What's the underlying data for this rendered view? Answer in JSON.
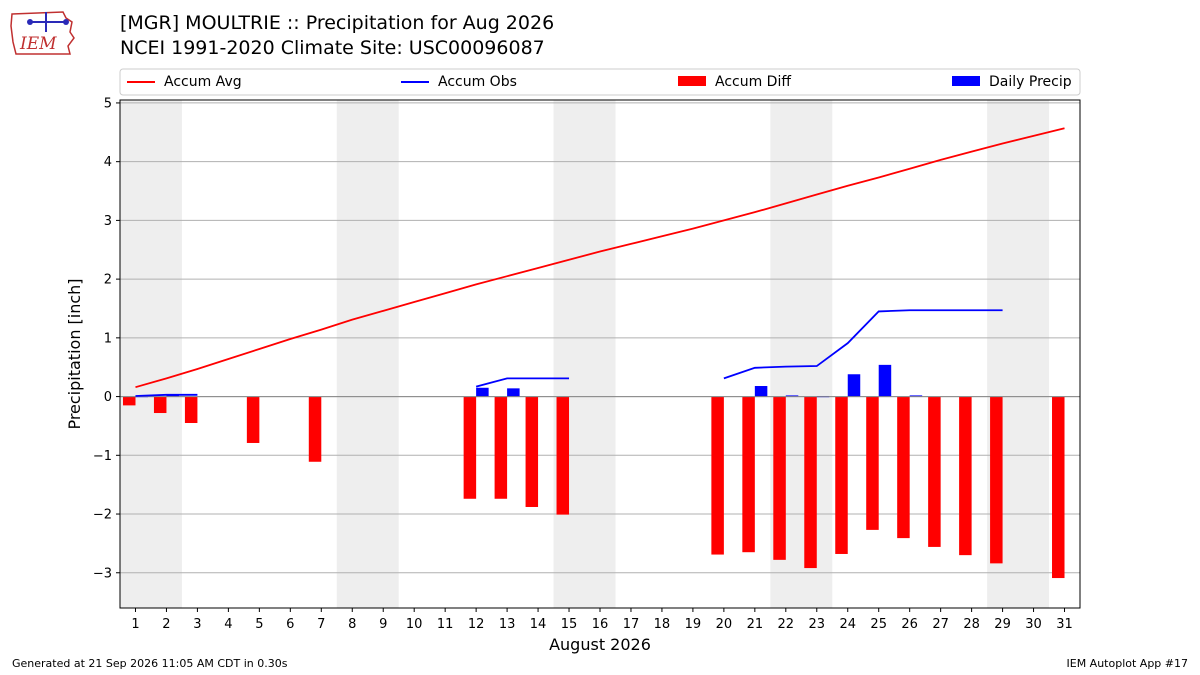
{
  "header": {
    "logo_text": "IEM",
    "title_line1": "[MGR] MOULTRIE :: Precipitation for Aug 2026",
    "title_line2": "NCEI 1991-2020 Climate Site: USC00096087"
  },
  "footer": {
    "generated": "Generated at 21 Sep 2026 11:05 AM CDT in 0.30s",
    "app": "IEM Autoplot App #17"
  },
  "colors": {
    "avg": "#ff0000",
    "obs": "#0000ff",
    "diff": "#ff0000",
    "daily": "#0000ff",
    "weekend_shade": "#eeeeee",
    "grid": "#b0b0b0"
  },
  "chart_data": {
    "type": "bar",
    "xlabel": "August 2026",
    "ylabel": "Precipitation [inch]",
    "xlim": [
      0.5,
      31.5
    ],
    "ylim": [
      -3.6,
      5.05
    ],
    "yticks": [
      -3,
      -2,
      -1,
      0,
      1,
      2,
      3,
      4,
      5
    ],
    "grid": true,
    "legend": {
      "placement": "top",
      "entries": [
        "Accum Avg",
        "Accum Obs",
        "Accum Diff",
        "Daily Precip"
      ]
    },
    "days": [
      1,
      2,
      3,
      4,
      5,
      6,
      7,
      8,
      9,
      10,
      11,
      12,
      13,
      14,
      15,
      16,
      17,
      18,
      19,
      20,
      21,
      22,
      23,
      24,
      25,
      26,
      27,
      28,
      29,
      30,
      31
    ],
    "shaded_ranges": [
      [
        0.5,
        2.5
      ],
      [
        7.5,
        9.5
      ],
      [
        14.5,
        16.5
      ],
      [
        21.5,
        23.5
      ],
      [
        28.5,
        30.5
      ]
    ],
    "accum_avg": {
      "name": "Accum Avg",
      "days": [
        1,
        2,
        3,
        4,
        5,
        6,
        7,
        8,
        9,
        10,
        11,
        12,
        13,
        14,
        15,
        16,
        17,
        18,
        19,
        20,
        21,
        22,
        23,
        24,
        25,
        26,
        27,
        28,
        29,
        30,
        31
      ],
      "values": [
        0.16,
        0.31,
        0.47,
        0.64,
        0.81,
        0.98,
        1.14,
        1.31,
        1.46,
        1.61,
        1.76,
        1.91,
        2.05,
        2.19,
        2.33,
        2.47,
        2.6,
        2.73,
        2.86,
        3.0,
        3.14,
        3.29,
        3.44,
        3.59,
        3.73,
        3.88,
        4.03,
        4.17,
        4.31,
        4.44,
        4.57
      ]
    },
    "accum_obs": {
      "name": "Accum Obs",
      "segments": [
        {
          "days": [
            1,
            2,
            3
          ],
          "values": [
            0.01,
            0.03,
            0.03
          ]
        },
        {
          "days": [
            12,
            13,
            14,
            15
          ],
          "values": [
            0.17,
            0.31,
            0.31,
            0.31
          ]
        },
        {
          "days": [
            20,
            21,
            22,
            23,
            24,
            25,
            26,
            27,
            28,
            29
          ],
          "values": [
            0.31,
            0.49,
            0.51,
            0.52,
            0.91,
            1.45,
            1.47,
            1.47,
            1.47,
            1.47
          ]
        }
      ]
    },
    "accum_diff": {
      "name": "Accum Diff",
      "days": [
        1,
        2,
        3,
        5,
        7,
        12,
        13,
        14,
        15,
        20,
        21,
        22,
        23,
        24,
        25,
        26,
        27,
        28,
        29,
        31
      ],
      "values": [
        -0.15,
        -0.28,
        -0.45,
        -0.79,
        -1.11,
        -1.74,
        -1.74,
        -1.88,
        -2.01,
        -2.69,
        -2.65,
        -2.78,
        -2.92,
        -2.68,
        -2.27,
        -2.41,
        -2.56,
        -2.7,
        -2.84,
        -3.09
      ]
    },
    "daily_precip": {
      "name": "Daily Precip",
      "days": [
        1,
        2,
        12,
        13,
        21,
        22,
        23,
        24,
        25,
        26
      ],
      "values": [
        0.01,
        0.02,
        0.15,
        0.14,
        0.18,
        0.02,
        0.01,
        0.38,
        0.54,
        0.02
      ]
    }
  }
}
